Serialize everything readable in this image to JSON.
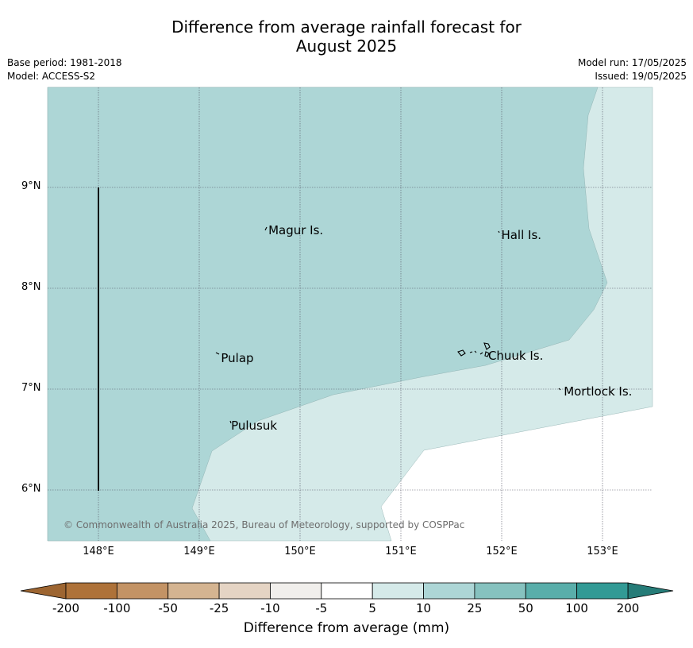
{
  "title": {
    "line1": "Difference from average rainfall forecast for",
    "line2": "August 2025"
  },
  "meta": {
    "base_period": "Base period: 1981-2018",
    "model": "Model: ACCESS-S2",
    "model_run": "Model run: 17/05/2025",
    "issued": "Issued: 19/05/2025"
  },
  "map": {
    "lon_range": [
      147.5,
      153.5
    ],
    "lat_range": [
      5.5,
      10.0
    ],
    "lat_ticks": [
      {
        "value": 9,
        "label": "9°N"
      },
      {
        "value": 8,
        "label": "8°N"
      },
      {
        "value": 7,
        "label": "7°N"
      },
      {
        "value": 6,
        "label": "6°N"
      }
    ],
    "lon_ticks": [
      {
        "value": 148,
        "label": "148°E"
      },
      {
        "value": 149,
        "label": "149°E"
      },
      {
        "value": 150,
        "label": "150°E"
      },
      {
        "value": 151,
        "label": "151°E"
      },
      {
        "value": 152,
        "label": "152°E"
      },
      {
        "value": 153,
        "label": "153°E"
      }
    ],
    "places": [
      {
        "name": "Magur Is.",
        "lon": 149.67,
        "lat": 8.57
      },
      {
        "name": "Hall Is.",
        "lon": 151.98,
        "lat": 8.52
      },
      {
        "name": "Pulap",
        "lon": 149.2,
        "lat": 7.3
      },
      {
        "name": "Chuuk Is.",
        "lon": 151.85,
        "lat": 7.32
      },
      {
        "name": "Mortlock Is.",
        "lon": 152.6,
        "lat": 6.97
      },
      {
        "name": "Pulusuk",
        "lon": 149.3,
        "lat": 6.63
      }
    ],
    "regions": [
      {
        "category": "10 to 25",
        "color": "#add6d6"
      },
      {
        "category": "5 to 10",
        "color": "#d5eae9"
      },
      {
        "category": "-5 to 5",
        "color": "#ffffff"
      }
    ],
    "copyright": "© Commonwealth of Australia 2025, Bureau of Meteorology, supported by COSPPac"
  },
  "colorbar": {
    "title": "Difference from average (mm)",
    "ticks": [
      "-200",
      "-100",
      "-50",
      "-25",
      "-10",
      "-5",
      "5",
      "10",
      "25",
      "50",
      "100",
      "200"
    ],
    "colors": [
      "#ae7239",
      "#c39365",
      "#d4b491",
      "#e5d4c4",
      "#f1efec",
      "#ffffff",
      "#d5eae9",
      "#add6d6",
      "#86c2bf",
      "#59aeaa",
      "#329a95"
    ],
    "under_color": "#9d6531",
    "over_color": "#267c78"
  }
}
